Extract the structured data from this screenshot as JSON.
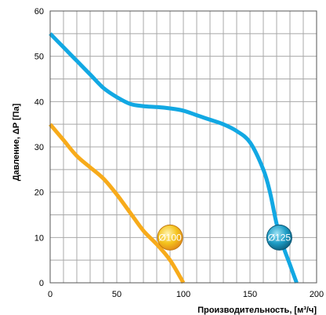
{
  "chart_data": {
    "type": "line",
    "xlabel": "Производительность, [м³/ч]",
    "ylabel": "Давление, ΔP [Па]",
    "xlim": [
      0,
      200
    ],
    "ylim": [
      0,
      60
    ],
    "x_ticks": [
      0,
      50,
      100,
      150,
      200
    ],
    "y_ticks": [
      0,
      10,
      20,
      30,
      40,
      50,
      60
    ],
    "x_tick_labels": [
      "0",
      "50",
      "100",
      "150",
      "200"
    ],
    "y_tick_labels": [
      "0",
      "10",
      "20",
      "30",
      "40",
      "50",
      "60"
    ],
    "grid": true,
    "grid_x_step": 10,
    "grid_y_step": 5,
    "series": [
      {
        "name": "Ø100",
        "color": "#f7ab1b",
        "label_at": [
          90,
          10
        ],
        "badge_color": "#f3c81e",
        "x": [
          0,
          10,
          20,
          30,
          40,
          50,
          60,
          70,
          80,
          90,
          100
        ],
        "y": [
          35,
          31.5,
          28,
          25.5,
          23,
          19.5,
          15.5,
          11.5,
          8.5,
          5,
          0
        ]
      },
      {
        "name": "Ø125",
        "color": "#12a8e3",
        "label_at": [
          172,
          10
        ],
        "badge_color": "#1c8fb8",
        "x": [
          0,
          10,
          20,
          30,
          40,
          50,
          60,
          70,
          80,
          90,
          100,
          110,
          120,
          130,
          140,
          150,
          160,
          165,
          170,
          175,
          180,
          185
        ],
        "y": [
          55,
          52,
          49,
          46,
          43,
          41,
          39.5,
          39,
          38.8,
          38.5,
          38,
          37,
          36,
          35,
          33.5,
          31,
          25,
          20,
          13,
          8,
          4,
          0
        ]
      }
    ]
  }
}
